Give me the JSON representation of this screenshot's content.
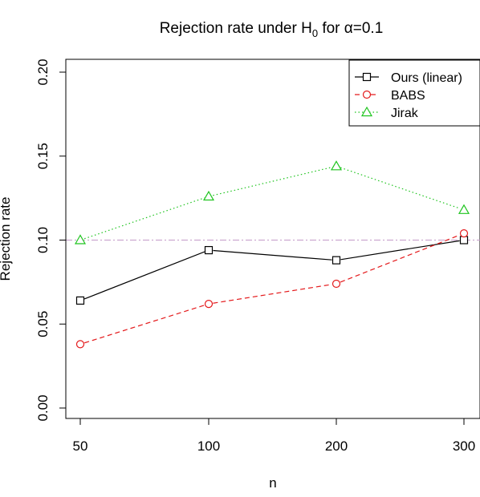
{
  "chart_data": {
    "type": "line",
    "title": "Rejection rate under H",
    "title_sub": "0",
    "title_suffix": " for α=0.1",
    "xlabel": "n",
    "ylabel": "Rejection rate",
    "categories": [
      "50",
      "100",
      "200",
      "300"
    ],
    "x": [
      50,
      100,
      200,
      300
    ],
    "y_ticks": [
      "0.00",
      "0.05",
      "0.10",
      "0.15",
      "0.20"
    ],
    "ylim": [
      0,
      0.2
    ],
    "reference_line": 0.1,
    "grid": false,
    "legend_position": "top-right",
    "series": [
      {
        "name": "Ours (linear)",
        "values": [
          0.064,
          0.094,
          0.088,
          0.1
        ],
        "color": "#000000",
        "marker": "square",
        "dash": "solid"
      },
      {
        "name": "BABS",
        "values": [
          0.038,
          0.062,
          0.074,
          0.104
        ],
        "color": "#e41a1c",
        "marker": "circle",
        "dash": "dashed"
      },
      {
        "name": "Jirak",
        "values": [
          0.1,
          0.126,
          0.144,
          0.118
        ],
        "color": "#1fc41f",
        "marker": "triangle",
        "dash": "dotted"
      }
    ],
    "reference_color": "#c49ac8"
  }
}
